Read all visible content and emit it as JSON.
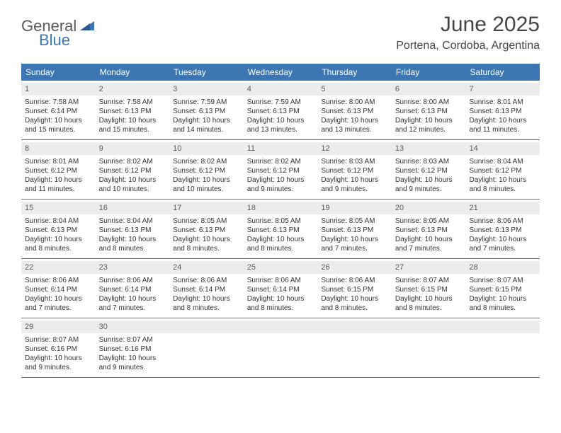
{
  "brand": {
    "part1": "General",
    "part2": "Blue"
  },
  "title": "June 2025",
  "location": "Portena, Cordoba, Argentina",
  "colors": {
    "header_bar": "#3c77b3",
    "daynum_bg": "#ececec",
    "week_border": "#3c77b3",
    "text": "#333333",
    "title_text": "#454545",
    "logo_gray": "#58595b",
    "logo_blue": "#3c77b3"
  },
  "day_names": [
    "Sunday",
    "Monday",
    "Tuesday",
    "Wednesday",
    "Thursday",
    "Friday",
    "Saturday"
  ],
  "weeks": [
    [
      {
        "n": "1",
        "sunrise": "Sunrise: 7:58 AM",
        "sunset": "Sunset: 6:14 PM",
        "daylight": "Daylight: 10 hours and 15 minutes."
      },
      {
        "n": "2",
        "sunrise": "Sunrise: 7:58 AM",
        "sunset": "Sunset: 6:13 PM",
        "daylight": "Daylight: 10 hours and 15 minutes."
      },
      {
        "n": "3",
        "sunrise": "Sunrise: 7:59 AM",
        "sunset": "Sunset: 6:13 PM",
        "daylight": "Daylight: 10 hours and 14 minutes."
      },
      {
        "n": "4",
        "sunrise": "Sunrise: 7:59 AM",
        "sunset": "Sunset: 6:13 PM",
        "daylight": "Daylight: 10 hours and 13 minutes."
      },
      {
        "n": "5",
        "sunrise": "Sunrise: 8:00 AM",
        "sunset": "Sunset: 6:13 PM",
        "daylight": "Daylight: 10 hours and 13 minutes."
      },
      {
        "n": "6",
        "sunrise": "Sunrise: 8:00 AM",
        "sunset": "Sunset: 6:13 PM",
        "daylight": "Daylight: 10 hours and 12 minutes."
      },
      {
        "n": "7",
        "sunrise": "Sunrise: 8:01 AM",
        "sunset": "Sunset: 6:13 PM",
        "daylight": "Daylight: 10 hours and 11 minutes."
      }
    ],
    [
      {
        "n": "8",
        "sunrise": "Sunrise: 8:01 AM",
        "sunset": "Sunset: 6:12 PM",
        "daylight": "Daylight: 10 hours and 11 minutes."
      },
      {
        "n": "9",
        "sunrise": "Sunrise: 8:02 AM",
        "sunset": "Sunset: 6:12 PM",
        "daylight": "Daylight: 10 hours and 10 minutes."
      },
      {
        "n": "10",
        "sunrise": "Sunrise: 8:02 AM",
        "sunset": "Sunset: 6:12 PM",
        "daylight": "Daylight: 10 hours and 10 minutes."
      },
      {
        "n": "11",
        "sunrise": "Sunrise: 8:02 AM",
        "sunset": "Sunset: 6:12 PM",
        "daylight": "Daylight: 10 hours and 9 minutes."
      },
      {
        "n": "12",
        "sunrise": "Sunrise: 8:03 AM",
        "sunset": "Sunset: 6:12 PM",
        "daylight": "Daylight: 10 hours and 9 minutes."
      },
      {
        "n": "13",
        "sunrise": "Sunrise: 8:03 AM",
        "sunset": "Sunset: 6:12 PM",
        "daylight": "Daylight: 10 hours and 9 minutes."
      },
      {
        "n": "14",
        "sunrise": "Sunrise: 8:04 AM",
        "sunset": "Sunset: 6:12 PM",
        "daylight": "Daylight: 10 hours and 8 minutes."
      }
    ],
    [
      {
        "n": "15",
        "sunrise": "Sunrise: 8:04 AM",
        "sunset": "Sunset: 6:13 PM",
        "daylight": "Daylight: 10 hours and 8 minutes."
      },
      {
        "n": "16",
        "sunrise": "Sunrise: 8:04 AM",
        "sunset": "Sunset: 6:13 PM",
        "daylight": "Daylight: 10 hours and 8 minutes."
      },
      {
        "n": "17",
        "sunrise": "Sunrise: 8:05 AM",
        "sunset": "Sunset: 6:13 PM",
        "daylight": "Daylight: 10 hours and 8 minutes."
      },
      {
        "n": "18",
        "sunrise": "Sunrise: 8:05 AM",
        "sunset": "Sunset: 6:13 PM",
        "daylight": "Daylight: 10 hours and 8 minutes."
      },
      {
        "n": "19",
        "sunrise": "Sunrise: 8:05 AM",
        "sunset": "Sunset: 6:13 PM",
        "daylight": "Daylight: 10 hours and 7 minutes."
      },
      {
        "n": "20",
        "sunrise": "Sunrise: 8:05 AM",
        "sunset": "Sunset: 6:13 PM",
        "daylight": "Daylight: 10 hours and 7 minutes."
      },
      {
        "n": "21",
        "sunrise": "Sunrise: 8:06 AM",
        "sunset": "Sunset: 6:13 PM",
        "daylight": "Daylight: 10 hours and 7 minutes."
      }
    ],
    [
      {
        "n": "22",
        "sunrise": "Sunrise: 8:06 AM",
        "sunset": "Sunset: 6:14 PM",
        "daylight": "Daylight: 10 hours and 7 minutes."
      },
      {
        "n": "23",
        "sunrise": "Sunrise: 8:06 AM",
        "sunset": "Sunset: 6:14 PM",
        "daylight": "Daylight: 10 hours and 7 minutes."
      },
      {
        "n": "24",
        "sunrise": "Sunrise: 8:06 AM",
        "sunset": "Sunset: 6:14 PM",
        "daylight": "Daylight: 10 hours and 8 minutes."
      },
      {
        "n": "25",
        "sunrise": "Sunrise: 8:06 AM",
        "sunset": "Sunset: 6:14 PM",
        "daylight": "Daylight: 10 hours and 8 minutes."
      },
      {
        "n": "26",
        "sunrise": "Sunrise: 8:06 AM",
        "sunset": "Sunset: 6:15 PM",
        "daylight": "Daylight: 10 hours and 8 minutes."
      },
      {
        "n": "27",
        "sunrise": "Sunrise: 8:07 AM",
        "sunset": "Sunset: 6:15 PM",
        "daylight": "Daylight: 10 hours and 8 minutes."
      },
      {
        "n": "28",
        "sunrise": "Sunrise: 8:07 AM",
        "sunset": "Sunset: 6:15 PM",
        "daylight": "Daylight: 10 hours and 8 minutes."
      }
    ],
    [
      {
        "n": "29",
        "sunrise": "Sunrise: 8:07 AM",
        "sunset": "Sunset: 6:16 PM",
        "daylight": "Daylight: 10 hours and 9 minutes."
      },
      {
        "n": "30",
        "sunrise": "Sunrise: 8:07 AM",
        "sunset": "Sunset: 6:16 PM",
        "daylight": "Daylight: 10 hours and 9 minutes."
      },
      {
        "empty": true
      },
      {
        "empty": true
      },
      {
        "empty": true
      },
      {
        "empty": true
      },
      {
        "empty": true
      }
    ]
  ]
}
